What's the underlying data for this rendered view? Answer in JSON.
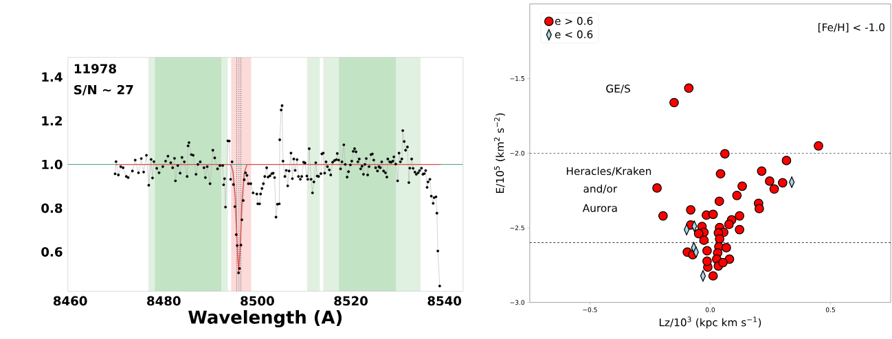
{
  "chart_data": [
    {
      "type": "line",
      "xlabel": "Wavelength (A)",
      "annotations": [
        "11978",
        "S/N ~ 27"
      ],
      "xlim": [
        8459.5,
        8544
      ],
      "ylim": [
        0.42,
        1.49
      ],
      "xticks": [
        8460,
        8480,
        8500,
        8520,
        8540
      ],
      "yticks": [
        {
          "value": 0.6,
          "label": "0.6"
        },
        {
          "value": 0.8,
          "label": "0.8"
        },
        {
          "value": 1.0,
          "label": "1.0"
        },
        {
          "value": 1.2,
          "label": "1.2"
        },
        {
          "value": 1.4,
          "label": "1.4"
        }
      ],
      "bands": [
        {
          "axis": "x",
          "from": 8476.7,
          "to": 8493.7,
          "color": "#e1f1e1"
        },
        {
          "axis": "x",
          "from": 8478.1,
          "to": 8492.3,
          "color": "#c3e3c5"
        },
        {
          "axis": "x",
          "from": 8494.4,
          "to": 8498.7,
          "color": "#fcdada"
        },
        {
          "axis": "x",
          "from": 8510.6,
          "to": 8513.4,
          "color": "#e1f1e1"
        },
        {
          "axis": "x",
          "from": 8514.1,
          "to": 8517.4,
          "color": "#e1f1e1"
        },
        {
          "axis": "x",
          "from": 8517.4,
          "to": 8529.7,
          "color": "#c3e3c5"
        },
        {
          "axis": "x",
          "from": 8529.7,
          "to": 8534.9,
          "color": "#e1f1e1"
        }
      ],
      "ref_lines": [
        {
          "axis": "y",
          "value": 1.0,
          "color": "#3c9c6c",
          "line_style": "solid"
        },
        {
          "axis": "x",
          "value": 8495.6,
          "color": "#333333",
          "line_style": "dotted"
        },
        {
          "axis": "x",
          "value": 8496.1,
          "color": "#333333",
          "line_style": "dotted"
        },
        {
          "axis": "x",
          "value": 8496.5,
          "color": "#333333",
          "line_style": "dotted"
        }
      ],
      "series": [
        {
          "color": "#000000",
          "marker": "circle",
          "x": [
            8469.6,
            8469.8,
            8470.3,
            8470.8,
            8471.3,
            8472.0,
            8472.4,
            8473.3,
            8473.9,
            8474.6,
            8475.2,
            8475.7,
            8476.3,
            8476.8,
            8477.3,
            8477.6,
            8477.9,
            8478.5,
            8479.0,
            8479.8,
            8480.4,
            8480.9,
            8481.5,
            8481.9,
            8482.3,
            8482.5,
            8483.0,
            8483.5,
            8483.9,
            8484.4,
            8485.0,
            8485.2,
            8485.4,
            8485.9,
            8486.3,
            8486.9,
            8487.3,
            8487.8,
            8488.6,
            8488.9,
            8489.3,
            8489.9,
            8490.5,
            8490.9,
            8491.5,
            8492.0,
            8492.6,
            8492.8,
            8493.0,
            8493.2,
            8493.7,
            8494.0,
            8494.3,
            8494.6,
            8494.9,
            8495.2,
            8495.5,
            8495.7,
            8496.0,
            8496.2,
            8496.5,
            8496.7,
            8497.0,
            8497.2,
            8497.5,
            8497.8,
            8498.1,
            8498.6,
            8499.1,
            8499.9,
            8500.1,
            8500.5,
            8500.7,
            8501.0,
            8501.3,
            8501.6,
            8502.0,
            8502.3,
            8502.7,
            8503.1,
            8503.4,
            8503.7,
            8504.0,
            8504.3,
            8504.7,
            8504.8,
            8505.1,
            8505.3,
            8505.5,
            8505.9,
            8506.2,
            8506.5,
            8506.8,
            8507.2,
            8507.5,
            8507.8,
            8508.1,
            8508.5,
            8508.8,
            8509.2,
            8509.5,
            8509.9,
            8510.2,
            8510.6,
            8510.8,
            8511.1,
            8511.5,
            8511.8,
            8512.1,
            8512.5,
            8512.8,
            8513.1,
            8513.6,
            8513.8,
            8514.1,
            8514.4,
            8514.7,
            8515.0,
            8515.4,
            8515.7,
            8516.1,
            8516.5,
            8516.9,
            8517.1,
            8517.4,
            8517.8,
            8518.1,
            8518.5,
            8518.8,
            8519.2,
            8519.5,
            8519.9,
            8520.2,
            8520.5,
            8520.8,
            8521.1,
            8521.5,
            8521.8,
            8522.1,
            8522.4,
            8522.7,
            8523.0,
            8523.3,
            8523.6,
            8523.9,
            8524.3,
            8524.6,
            8524.9,
            8525.3,
            8525.7,
            8526.0,
            8526.3,
            8526.6,
            8527.0,
            8527.4,
            8527.7,
            8527.9,
            8528.3,
            8528.6,
            8529.0,
            8529.2,
            8529.6,
            8530.0,
            8530.3,
            8530.6,
            8530.9,
            8531.1,
            8531.4,
            8531.7,
            8532.1,
            8532.4,
            8532.6,
            8533.0,
            8533.3,
            8533.7,
            8534.0,
            8534.4,
            8534.7,
            8535.1,
            8535.4,
            8535.7,
            8536.0,
            8536.3,
            8536.5,
            8536.9,
            8537.2,
            8537.6,
            8537.8,
            8538.2,
            8538.4,
            8538.6,
            8539.0
          ],
          "values": [
            0.957,
            1.013,
            0.952,
            0.99,
            0.985,
            0.945,
            0.94,
            0.97,
            1.02,
            0.962,
            1.027,
            0.965,
            1.042,
            0.905,
            1.023,
            0.938,
            1.013,
            0.982,
            0.962,
            0.99,
            1.015,
            1.038,
            1.008,
            0.985,
            1.028,
            0.925,
            0.995,
            0.96,
            1.032,
            1.012,
            0.945,
            1.085,
            1.1,
            1.045,
            1.042,
            0.955,
            1.0,
            1.012,
            0.985,
            0.94,
            0.99,
            0.912,
            1.065,
            1.03,
            0.98,
            0.995,
            0.995,
            0.907,
            0.935,
            0.805,
            1.108,
            1.107,
            0.932,
            1.012,
            0.908,
            0.807,
            0.679,
            0.629,
            0.504,
            0.524,
            0.631,
            0.747,
            0.835,
            0.93,
            0.962,
            0.95,
            0.912,
            0.912,
            0.87,
            0.865,
            0.82,
            0.82,
            0.865,
            0.89,
            0.912,
            0.945,
            0.985,
            0.942,
            0.948,
            0.958,
            0.96,
            0.94,
            0.759,
            0.818,
            0.82,
            1.113,
            1.249,
            1.269,
            1.015,
            0.945,
            0.973,
            0.902,
            0.97,
            1.052,
            0.935,
            1.025,
            0.973,
            1.022,
            0.945,
            0.932,
            0.945,
            1.01,
            1.007,
            0.947,
            0.932,
            1.072,
            0.932,
            0.87,
            0.92,
            1.008,
            0.947,
            0.945,
            0.958,
            1.048,
            1.052,
            0.96,
            1.012,
            0.99,
            0.975,
            0.952,
            1.01,
            1.018,
            1.022,
            1.05,
            1.02,
            0.98,
            1.012,
            1.09,
            1.0,
            0.942,
            0.967,
            0.998,
            1.015,
            1.06,
            1.072,
            1.058,
            1.012,
            1.025,
            0.98,
            0.992,
            0.955,
            1.0,
            1.027,
            0.952,
            0.99,
            1.045,
            1.048,
            1.02,
            0.985,
            0.97,
            0.99,
            0.985,
            1.012,
            0.97,
            0.962,
            0.942,
            1.025,
            1.012,
            1.01,
            1.015,
            1.035,
            1.002,
            0.925,
            1.052,
            1.012,
            1.025,
            1.155,
            1.105,
            1.065,
            1.08,
            0.917,
            0.983,
            1.025,
            0.982,
            0.965,
            0.955,
            0.962,
            0.972,
            0.983,
            0.955,
            0.958,
            0.972,
            0.895,
            0.92,
            0.932,
            0.855,
            0.822,
            0.848,
            0.852,
            0.777,
            0.604,
            0.444
          ]
        },
        {
          "color": "#e05050",
          "marker": "none",
          "x": [
            8469.6,
            8494.3,
            8494.8,
            8495.3,
            8495.7,
            8496.0,
            8496.3,
            8496.7,
            8497.2,
            8497.8,
            8539.2
          ],
          "values": [
            1.0,
            1.0,
            0.97,
            0.85,
            0.63,
            0.51,
            0.6,
            0.82,
            0.96,
            1.0,
            1.0
          ]
        }
      ]
    },
    {
      "type": "scatter",
      "xlabel": "Lz/10$^{3}$ (kpc km s$^{−1}$)",
      "ylabel": "E/10$^{5}$ (km$^{2}$ s$^{−2}$)",
      "annotations": [
        "[Fe/H] < -1.0",
        "GE/S",
        "Heracles/Kraken",
        "and/or",
        "Aurora"
      ],
      "xlim": [
        -0.75,
        0.75
      ],
      "ylim": [
        -3.0,
        -1.0
      ],
      "xticks": [
        {
          "value": -0.5,
          "label": "−0.5"
        },
        {
          "value": 0.0,
          "label": "0.0"
        },
        {
          "value": 0.5,
          "label": "0.5"
        }
      ],
      "yticks": [
        {
          "value": -3.0,
          "label": "−3.0"
        },
        {
          "value": -2.5,
          "label": "−2.5"
        },
        {
          "value": -2.0,
          "label": "−2.0"
        },
        {
          "value": -1.5,
          "label": "−1.5"
        }
      ],
      "legend": "top left",
      "ref_lines": [
        {
          "axis": "y",
          "value": -2.0,
          "color": "#000000",
          "line_style": "dashed"
        },
        {
          "axis": "y",
          "value": -2.6,
          "color": "#000000",
          "line_style": "dashed"
        }
      ],
      "series": [
        {
          "name": "e > 0.6",
          "color": "#ff0000",
          "marker": "circle",
          "x": [
            -0.089,
            -0.15,
            0.45,
            0.061,
            0.317,
            0.214,
            0.043,
            -0.221,
            0.247,
            0.266,
            0.301,
            0.133,
            0.111,
            0.038,
            0.201,
            0.204,
            -0.196,
            -0.081,
            -0.016,
            0.012,
            0.122,
            0.089,
            0.078,
            0.122,
            -0.081,
            -0.034,
            -0.026,
            -0.048,
            0.039,
            0.056,
            0.034,
            0.039,
            -0.026,
            -0.095,
            -0.073,
            -0.013,
            0.036,
            0.067,
            0.031,
            0.027,
            -0.01,
            0.034,
            0.08,
            0.012,
            0.053,
            -0.013
          ],
          "values": [
            -1.564,
            -1.661,
            -1.951,
            -2.004,
            -2.049,
            -2.12,
            -2.138,
            -2.233,
            -2.187,
            -2.24,
            -2.198,
            -2.221,
            -2.283,
            -2.322,
            -2.336,
            -2.371,
            -2.42,
            -2.38,
            -2.415,
            -2.41,
            -2.42,
            -2.447,
            -2.477,
            -2.512,
            -2.481,
            -2.491,
            -2.53,
            -2.539,
            -2.498,
            -2.53,
            -2.534,
            -2.574,
            -2.583,
            -2.663,
            -2.68,
            -2.654,
            -2.627,
            -2.633,
            -2.668,
            -2.71,
            -2.763,
            -2.756,
            -2.71,
            -2.822,
            -2.733,
            -2.724
          ]
        },
        {
          "name": "e < 0.6",
          "color": "#add8e6",
          "marker": "diamond",
          "x": [
            -0.098,
            -0.066,
            -0.068,
            -0.059,
            -0.03,
            0.339
          ],
          "values": [
            -2.512,
            -2.489,
            -2.633,
            -2.663,
            -2.822,
            -2.194
          ]
        }
      ]
    }
  ]
}
